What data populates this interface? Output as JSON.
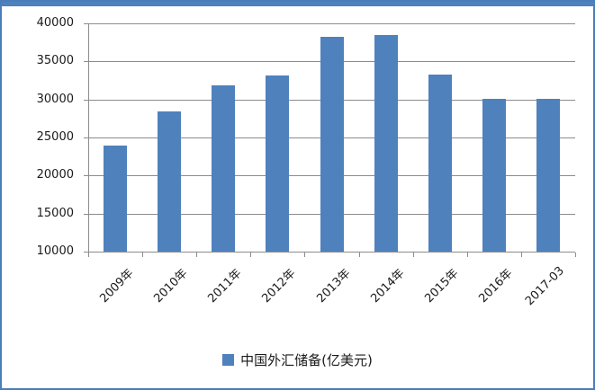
{
  "chart_data": {
    "type": "bar",
    "title": "",
    "categories": [
      "2009年",
      "2010年",
      "2011年",
      "2012年",
      "2013年",
      "2014年",
      "2015年",
      "2016年",
      "2017-03"
    ],
    "values": [
      23992,
      28473,
      31811,
      33116,
      38213,
      38430,
      33304,
      30105,
      30091
    ],
    "legend": "中国外汇储备(亿美元)",
    "legend_position": "bottom",
    "xlabel": "",
    "ylabel": "",
    "ylim": [
      10000,
      40000
    ],
    "y_ticks": [
      "10000",
      "15000",
      "20000",
      "25000",
      "30000",
      "35000",
      "40000"
    ],
    "grid": true,
    "bar_color": "#4f81bd",
    "gridline_color": "#8c8c8c",
    "frame_border_color": "#4a7ebb",
    "top_band_color": "#4f81bd"
  }
}
